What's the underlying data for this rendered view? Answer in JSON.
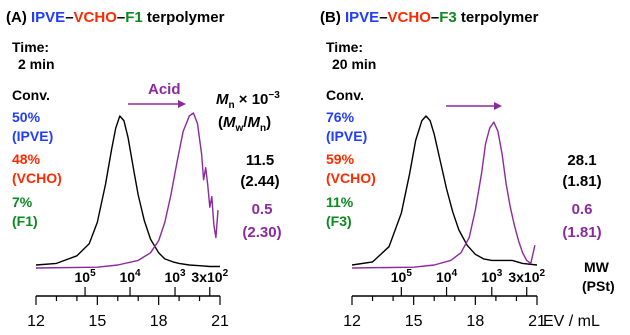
{
  "colors": {
    "black": "#000000",
    "blue": "#1f3cff",
    "red": "#ff2a00",
    "green": "#0a8a1f",
    "purple": "#8b2a9c",
    "axis": "#000000"
  },
  "chart_data": [
    {
      "type": "line",
      "panel_label": "(A)",
      "title_parts": [
        "IPVE",
        "–",
        "VCHO",
        "–",
        "F1",
        " terpolymer"
      ],
      "time_label": "Time:",
      "time_value": "2 min",
      "conv_label": "Conv.",
      "conversions": [
        {
          "value": "50%",
          "monomer": "(IPVE)"
        },
        {
          "value": "48%",
          "monomer": "(VCHO)"
        },
        {
          "value": "7%",
          "monomer": "(F1)"
        }
      ],
      "mn_header": "M_n × 10^−3",
      "mwmn_header": "(M_w/M_n)",
      "black_mn": "11.5",
      "black_pdi": "(2.44)",
      "purple_mn": "0.5",
      "purple_pdi": "(2.30)",
      "arrow_label": "Acid",
      "x_axis_label": "EV / mL",
      "xlim": [
        12,
        21
      ],
      "x_ticks": [
        "12",
        "15",
        "18",
        "21"
      ],
      "mw_ticks": [
        {
          "ev": 14.4,
          "label": "10^5"
        },
        {
          "ev": 16.6,
          "label": "10^4"
        },
        {
          "ev": 18.8,
          "label": "10^3"
        },
        {
          "ev": 20.5,
          "label": "3x10^2"
        }
      ],
      "series": [
        {
          "color_key": "black",
          "x": [
            12.0,
            13.0,
            14.0,
            14.6,
            15.0,
            15.4,
            15.7,
            15.9,
            16.1,
            16.3,
            16.5,
            16.8,
            17.0,
            17.3,
            17.6,
            18.0,
            18.3,
            18.7,
            19.0,
            19.5,
            20.0,
            20.5,
            21.0
          ],
          "y": [
            0.02,
            0.03,
            0.08,
            0.16,
            0.3,
            0.55,
            0.78,
            0.92,
            1.0,
            0.97,
            0.86,
            0.63,
            0.48,
            0.31,
            0.19,
            0.1,
            0.06,
            0.04,
            0.03,
            0.02,
            0.015,
            0.01,
            0.01
          ]
        },
        {
          "color_key": "purple",
          "x": [
            12.0,
            15.0,
            16.0,
            17.0,
            17.6,
            18.0,
            18.3,
            18.6,
            18.9,
            19.2,
            19.5,
            19.7,
            19.9,
            20.1,
            20.2,
            20.3,
            20.4,
            20.5,
            20.6,
            20.7,
            20.8,
            20.9
          ],
          "y": [
            0.0,
            0.005,
            0.02,
            0.05,
            0.1,
            0.18,
            0.3,
            0.48,
            0.7,
            0.9,
            1.0,
            1.02,
            0.95,
            0.75,
            0.58,
            0.66,
            0.55,
            0.4,
            0.47,
            0.28,
            0.2,
            0.38
          ]
        }
      ]
    },
    {
      "type": "line",
      "panel_label": "(B)",
      "title_parts": [
        "IPVE",
        "–",
        "VCHO",
        "–",
        "F3",
        " terpolymer"
      ],
      "time_label": "Time:",
      "time_value": "20 min",
      "conv_label": "Conv.",
      "conversions": [
        {
          "value": "76%",
          "monomer": "(IPVE)"
        },
        {
          "value": "59%",
          "monomer": "(VCHO)"
        },
        {
          "value": "11%",
          "monomer": "(F3)"
        }
      ],
      "black_mn": "28.1",
      "black_pdi": "(1.81)",
      "purple_mn": "0.6",
      "purple_pdi": "(1.81)",
      "mw_label_1": "MW",
      "mw_label_2": "(PSt)",
      "x_axis_label": "EV / mL",
      "xlim": [
        12,
        21
      ],
      "x_ticks": [
        "12",
        "15",
        "18",
        "21"
      ],
      "mw_ticks": [
        {
          "ev": 14.4,
          "label": "10^5"
        },
        {
          "ev": 16.6,
          "label": "10^4"
        },
        {
          "ev": 18.8,
          "label": "10^3"
        },
        {
          "ev": 20.5,
          "label": "3x10^2"
        }
      ],
      "series": [
        {
          "color_key": "black",
          "x": [
            12.0,
            13.0,
            13.8,
            14.4,
            14.8,
            15.1,
            15.4,
            15.6,
            15.8,
            16.0,
            16.3,
            16.6,
            16.9,
            17.2,
            17.6,
            18.0,
            18.4,
            18.8,
            19.3,
            19.8,
            20.3,
            21.0
          ],
          "y": [
            0.02,
            0.04,
            0.14,
            0.36,
            0.62,
            0.84,
            0.97,
            1.0,
            0.97,
            0.88,
            0.7,
            0.52,
            0.37,
            0.25,
            0.15,
            0.09,
            0.06,
            0.05,
            0.05,
            0.05,
            0.03,
            0.02
          ]
        },
        {
          "color_key": "purple",
          "x": [
            12.0,
            15.0,
            16.0,
            16.8,
            17.3,
            17.7,
            18.0,
            18.3,
            18.5,
            18.7,
            18.9,
            19.1,
            19.3,
            19.5,
            19.7,
            19.9,
            20.1,
            20.3,
            20.5,
            20.7,
            20.9
          ],
          "y": [
            0.0,
            0.005,
            0.02,
            0.05,
            0.1,
            0.2,
            0.38,
            0.62,
            0.82,
            0.92,
            0.96,
            0.9,
            0.75,
            0.55,
            0.4,
            0.28,
            0.18,
            0.1,
            0.05,
            0.03,
            0.15
          ]
        }
      ]
    }
  ]
}
